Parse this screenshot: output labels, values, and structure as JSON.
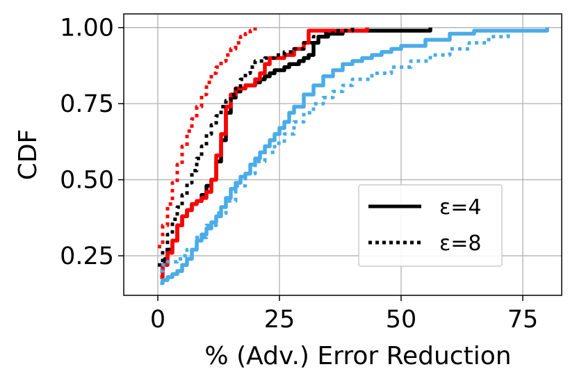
{
  "chart_data": {
    "type": "line",
    "xlabel": "% (Adv.) Error Reduction",
    "ylabel": "CDF",
    "xlim": [
      -7,
      83
    ],
    "ylim": [
      0.12,
      1.045
    ],
    "xticks": [
      0,
      25,
      50,
      75
    ],
    "yticks": [
      0.25,
      0.5,
      0.75,
      1.0
    ],
    "xtick_labels": [
      "0",
      "25",
      "50",
      "75"
    ],
    "ytick_labels": [
      "0.25",
      "0.50",
      "0.75",
      "1.00"
    ],
    "grid": true,
    "legend_position": "lower-right",
    "legend": [
      {
        "label": "ε=4",
        "style": "solid"
      },
      {
        "label": "ε=8",
        "style": "dotted"
      }
    ],
    "series": [
      {
        "color": "#000000",
        "style": "solid",
        "x": [
          0.5,
          1,
          1.5,
          2,
          3,
          4,
          5,
          6,
          7,
          8,
          9,
          10,
          11,
          12,
          13,
          14,
          15,
          16,
          17,
          18,
          19,
          20,
          21,
          22,
          23,
          24,
          25,
          26,
          27,
          28,
          29,
          30,
          31,
          32,
          33,
          35,
          38,
          40,
          45,
          50,
          56
        ],
        "y": [
          0.2,
          0.22,
          0.24,
          0.27,
          0.3,
          0.35,
          0.38,
          0.4,
          0.42,
          0.43,
          0.45,
          0.48,
          0.5,
          0.56,
          0.63,
          0.72,
          0.77,
          0.79,
          0.8,
          0.81,
          0.81,
          0.82,
          0.83,
          0.84,
          0.85,
          0.86,
          0.86,
          0.87,
          0.88,
          0.88,
          0.89,
          0.9,
          0.91,
          0.95,
          0.97,
          0.98,
          0.99,
          0.99,
          0.99,
          0.99,
          1.0
        ]
      },
      {
        "color": "#ff0000",
        "style": "solid",
        "x": [
          0.5,
          1,
          2,
          3,
          4,
          5,
          6,
          7,
          8,
          9,
          10,
          11,
          12,
          13,
          14,
          15,
          16,
          17,
          18,
          19,
          20,
          21,
          22,
          23,
          24,
          26,
          28,
          30,
          31,
          35,
          40,
          43
        ],
        "y": [
          0.18,
          0.22,
          0.26,
          0.3,
          0.35,
          0.38,
          0.4,
          0.42,
          0.43,
          0.44,
          0.46,
          0.5,
          0.58,
          0.65,
          0.74,
          0.78,
          0.8,
          0.8,
          0.81,
          0.81,
          0.83,
          0.85,
          0.88,
          0.9,
          0.9,
          0.91,
          0.93,
          0.95,
          0.99,
          0.99,
          0.99,
          1.0
        ]
      },
      {
        "color": "#4aace8",
        "style": "solid",
        "x": [
          0.5,
          1,
          2,
          3,
          4,
          5,
          6,
          7,
          8,
          9,
          10,
          11,
          12,
          13,
          14,
          15,
          16,
          17,
          18,
          19,
          20,
          21,
          22,
          23,
          24,
          25,
          26,
          27,
          28,
          30,
          32,
          34,
          36,
          38,
          40,
          42,
          44,
          46,
          48,
          50,
          55,
          60,
          65,
          70,
          75,
          80
        ],
        "y": [
          0.16,
          0.17,
          0.18,
          0.19,
          0.2,
          0.22,
          0.24,
          0.27,
          0.3,
          0.32,
          0.34,
          0.36,
          0.38,
          0.41,
          0.44,
          0.47,
          0.49,
          0.51,
          0.52,
          0.55,
          0.57,
          0.59,
          0.61,
          0.63,
          0.65,
          0.67,
          0.69,
          0.72,
          0.74,
          0.78,
          0.81,
          0.84,
          0.86,
          0.88,
          0.89,
          0.9,
          0.91,
          0.92,
          0.93,
          0.94,
          0.96,
          0.98,
          0.99,
          0.99,
          0.99,
          1.0
        ]
      },
      {
        "color": "#000000",
        "style": "dotted",
        "x": [
          0,
          1,
          2,
          3,
          4,
          5,
          6,
          7,
          8,
          9,
          10,
          11,
          12,
          13,
          14,
          15,
          16,
          17,
          18,
          19,
          20,
          22,
          24,
          26,
          28,
          30,
          32,
          34,
          36,
          38,
          40
        ],
        "y": [
          0.22,
          0.27,
          0.32,
          0.37,
          0.41,
          0.45,
          0.49,
          0.53,
          0.57,
          0.61,
          0.65,
          0.68,
          0.71,
          0.74,
          0.76,
          0.78,
          0.8,
          0.83,
          0.85,
          0.87,
          0.89,
          0.9,
          0.91,
          0.92,
          0.93,
          0.95,
          0.97,
          0.98,
          0.99,
          0.99,
          1.0
        ]
      },
      {
        "color": "#ff0000",
        "style": "dotted",
        "x": [
          0,
          1,
          2,
          3,
          4,
          5,
          6,
          7,
          8,
          9,
          10,
          11,
          12,
          13,
          14,
          15,
          16,
          17,
          18,
          19,
          20
        ],
        "y": [
          0.28,
          0.35,
          0.42,
          0.49,
          0.55,
          0.61,
          0.66,
          0.7,
          0.74,
          0.78,
          0.82,
          0.85,
          0.87,
          0.89,
          0.91,
          0.93,
          0.95,
          0.97,
          0.98,
          0.99,
          1.0
        ]
      },
      {
        "color": "#4aace8",
        "style": "dotted",
        "x": [
          0.5,
          1,
          2,
          3,
          4,
          5,
          6,
          8,
          10,
          12,
          14,
          16,
          18,
          20,
          22,
          24,
          26,
          28,
          30,
          32,
          34,
          36,
          38,
          40,
          44,
          48,
          52,
          56,
          60,
          64,
          68,
          72,
          76,
          80
        ],
        "y": [
          0.2,
          0.22,
          0.23,
          0.23,
          0.24,
          0.25,
          0.27,
          0.31,
          0.35,
          0.39,
          0.43,
          0.48,
          0.52,
          0.56,
          0.59,
          0.62,
          0.65,
          0.69,
          0.72,
          0.75,
          0.77,
          0.79,
          0.81,
          0.83,
          0.85,
          0.87,
          0.89,
          0.91,
          0.93,
          0.95,
          0.97,
          0.99,
          0.99,
          1.0
        ]
      }
    ]
  }
}
